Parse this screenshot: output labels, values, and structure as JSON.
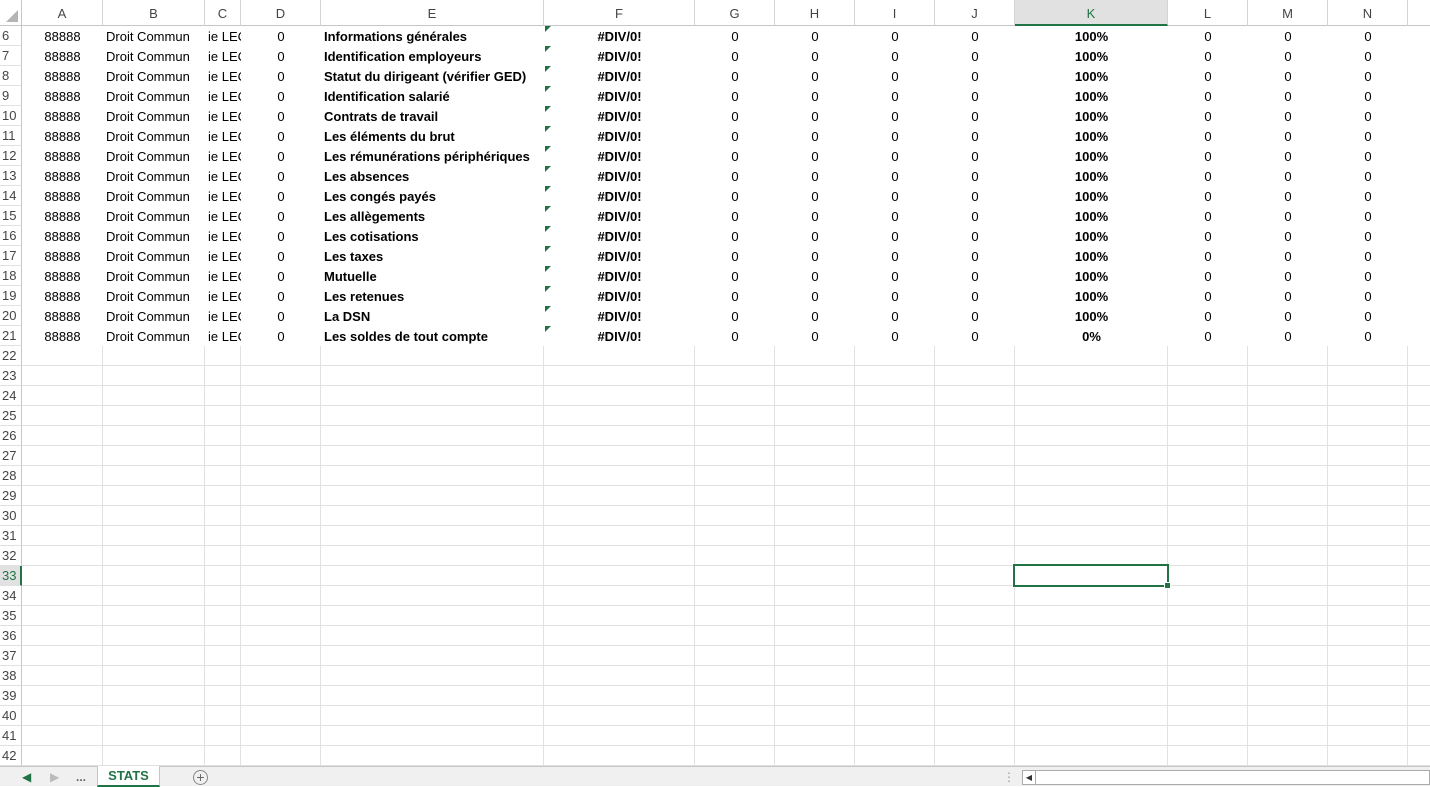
{
  "columns": [
    "A",
    "B",
    "C",
    "D",
    "E",
    "F",
    "G",
    "H",
    "I",
    "J",
    "K",
    "L",
    "M",
    "N"
  ],
  "selected_column": "K",
  "selected_row": 33,
  "first_row": 6,
  "last_row": 42,
  "rows": [
    {
      "n": 6,
      "cells": [
        "88888",
        "Droit Commun",
        "ie LEC",
        "0",
        "Informations générales",
        "#DIV/0!",
        "0",
        "0",
        "0",
        "0",
        "100%",
        "0",
        "0",
        "0"
      ]
    },
    {
      "n": 7,
      "cells": [
        "88888",
        "Droit Commun",
        "ie LEC",
        "0",
        "Identification employeurs",
        "#DIV/0!",
        "0",
        "0",
        "0",
        "0",
        "100%",
        "0",
        "0",
        "0"
      ]
    },
    {
      "n": 8,
      "cells": [
        "88888",
        "Droit Commun",
        "ie LEC",
        "0",
        "Statut du dirigeant (vérifier GED)",
        "#DIV/0!",
        "0",
        "0",
        "0",
        "0",
        "100%",
        "0",
        "0",
        "0"
      ]
    },
    {
      "n": 9,
      "cells": [
        "88888",
        "Droit Commun",
        "ie LEC",
        "0",
        "Identification salarié",
        "#DIV/0!",
        "0",
        "0",
        "0",
        "0",
        "100%",
        "0",
        "0",
        "0"
      ]
    },
    {
      "n": 10,
      "cells": [
        "88888",
        "Droit Commun",
        "ie LEC",
        "0",
        "Contrats de travail",
        "#DIV/0!",
        "0",
        "0",
        "0",
        "0",
        "100%",
        "0",
        "0",
        "0"
      ]
    },
    {
      "n": 11,
      "cells": [
        "88888",
        "Droit Commun",
        "ie LEC",
        "0",
        "Les éléments du brut",
        "#DIV/0!",
        "0",
        "0",
        "0",
        "0",
        "100%",
        "0",
        "0",
        "0"
      ]
    },
    {
      "n": 12,
      "cells": [
        "88888",
        "Droit Commun",
        "ie LEC",
        "0",
        "Les rémunérations périphériques",
        "#DIV/0!",
        "0",
        "0",
        "0",
        "0",
        "100%",
        "0",
        "0",
        "0"
      ]
    },
    {
      "n": 13,
      "cells": [
        "88888",
        "Droit Commun",
        "ie LEC",
        "0",
        "Les absences",
        "#DIV/0!",
        "0",
        "0",
        "0",
        "0",
        "100%",
        "0",
        "0",
        "0"
      ]
    },
    {
      "n": 14,
      "cells": [
        "88888",
        "Droit Commun",
        "ie LEC",
        "0",
        "Les congés payés",
        "#DIV/0!",
        "0",
        "0",
        "0",
        "0",
        "100%",
        "0",
        "0",
        "0"
      ]
    },
    {
      "n": 15,
      "cells": [
        "88888",
        "Droit Commun",
        "ie LEC",
        "0",
        "Les allègements",
        "#DIV/0!",
        "0",
        "0",
        "0",
        "0",
        "100%",
        "0",
        "0",
        "0"
      ]
    },
    {
      "n": 16,
      "cells": [
        "88888",
        "Droit Commun",
        "ie LEC",
        "0",
        "Les cotisations",
        "#DIV/0!",
        "0",
        "0",
        "0",
        "0",
        "100%",
        "0",
        "0",
        "0"
      ]
    },
    {
      "n": 17,
      "cells": [
        "88888",
        "Droit Commun",
        "ie LEC",
        "0",
        "Les taxes",
        "#DIV/0!",
        "0",
        "0",
        "0",
        "0",
        "100%",
        "0",
        "0",
        "0"
      ]
    },
    {
      "n": 18,
      "cells": [
        "88888",
        "Droit Commun",
        "ie LEC",
        "0",
        "Mutuelle",
        "#DIV/0!",
        "0",
        "0",
        "0",
        "0",
        "100%",
        "0",
        "0",
        "0"
      ]
    },
    {
      "n": 19,
      "cells": [
        "88888",
        "Droit Commun",
        "ie LEC",
        "0",
        "Les retenues",
        "#DIV/0!",
        "0",
        "0",
        "0",
        "0",
        "100%",
        "0",
        "0",
        "0"
      ]
    },
    {
      "n": 20,
      "cells": [
        "88888",
        "Droit Commun",
        "ie LEC",
        "0",
        "La DSN",
        "#DIV/0!",
        "0",
        "0",
        "0",
        "0",
        "100%",
        "0",
        "0",
        "0"
      ]
    },
    {
      "n": 21,
      "cells": [
        "88888",
        "Droit Commun",
        "ie LEC",
        "0",
        "Les soldes de tout compte",
        "#DIV/0!",
        "0",
        "0",
        "0",
        "0",
        "0%",
        "0",
        "0",
        "0"
      ]
    }
  ],
  "tabbar": {
    "prev_icon": "triangle-left-icon",
    "next_icon": "triangle-right-icon",
    "more_label": "...",
    "sheet_tab": "STATS",
    "add_sheet_icon": "plus-circle-icon",
    "add_sheet_label": "+"
  },
  "accent_color": "#217346"
}
